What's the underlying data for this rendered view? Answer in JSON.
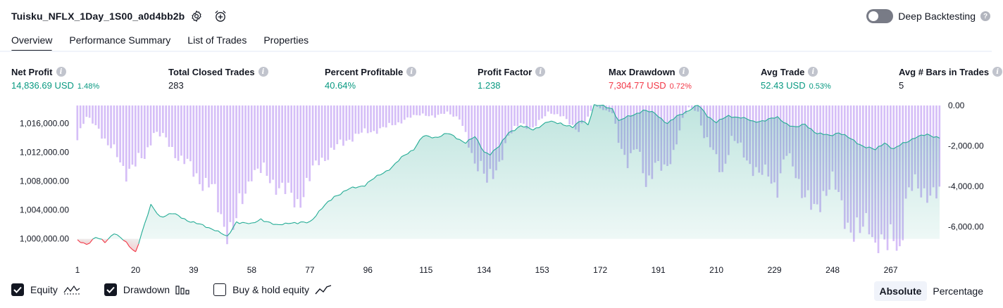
{
  "header": {
    "title": "Tuisku_NFLX_1Day_1S00_a0d4bb2b",
    "settings_icon": "gear-icon",
    "alert_icon": "alarm-clock-plus-icon",
    "deep_backtesting_label": "Deep Backtesting",
    "deep_backtesting_enabled": false
  },
  "tabs": [
    {
      "label": "Overview",
      "active": true
    },
    {
      "label": "Performance Summary",
      "active": false
    },
    {
      "label": "List of Trades",
      "active": false
    },
    {
      "label": "Properties",
      "active": false
    }
  ],
  "metrics": [
    {
      "label": "Net Profit",
      "value": "14,836.69 USD",
      "pct": "1.48%",
      "color": "#089981"
    },
    {
      "label": "Total Closed Trades",
      "value": "283",
      "pct": "",
      "color": "#131722"
    },
    {
      "label": "Percent Profitable",
      "value": "40.64%",
      "pct": "",
      "color": "#089981"
    },
    {
      "label": "Profit Factor",
      "value": "1.238",
      "pct": "",
      "color": "#089981"
    },
    {
      "label": "Max Drawdown",
      "value": "7,304.77 USD",
      "pct": "0.72%",
      "color": "#f23645"
    },
    {
      "label": "Avg Trade",
      "value": "52.43 USD",
      "pct": "0.53%",
      "color": "#089981"
    },
    {
      "label": "Avg # Bars in Trades",
      "value": "5",
      "pct": "",
      "color": "#131722"
    }
  ],
  "chart_data": {
    "type": "area",
    "x_ticks": [
      "1",
      "20",
      "39",
      "58",
      "77",
      "96",
      "115",
      "134",
      "153",
      "172",
      "191",
      "210",
      "229",
      "248",
      "267"
    ],
    "x_range": [
      1,
      283
    ],
    "left_axis": {
      "ticks": [
        "1,016,000.00",
        "1,012,000.00",
        "1,008,000.00",
        "1,004,000.00",
        "1,000,000.00"
      ],
      "range": [
        998500,
        1018500
      ]
    },
    "right_axis": {
      "ticks": [
        "0.00",
        "-2,000.00",
        "-4,000.00",
        "-6,000.00"
      ],
      "range": [
        -7304.77,
        0
      ]
    },
    "equity_baseline": 1000000,
    "equity_series": {
      "name": "Equity",
      "anchors": [
        [
          1,
          999700
        ],
        [
          4,
          999300
        ],
        [
          7,
          1000200
        ],
        [
          10,
          999500
        ],
        [
          13,
          1000900
        ],
        [
          16,
          999800
        ],
        [
          18,
          998900
        ],
        [
          20,
          998200
        ],
        [
          22,
          1000800
        ],
        [
          25,
          1004600
        ],
        [
          28,
          1003100
        ],
        [
          32,
          1003500
        ],
        [
          37,
          1002600
        ],
        [
          42,
          1001800
        ],
        [
          46,
          1001300
        ],
        [
          50,
          1000200
        ],
        [
          53,
          1002400
        ],
        [
          58,
          1002000
        ],
        [
          61,
          1002800
        ],
        [
          66,
          1001800
        ],
        [
          70,
          1002300
        ],
        [
          73,
          1002100
        ],
        [
          77,
          1002400
        ],
        [
          81,
          1004200
        ],
        [
          85,
          1005900
        ],
        [
          90,
          1006900
        ],
        [
          95,
          1007500
        ],
        [
          100,
          1008900
        ],
        [
          104,
          1010000
        ],
        [
          108,
          1011600
        ],
        [
          111,
          1012500
        ],
        [
          114,
          1014200
        ],
        [
          118,
          1014100
        ],
        [
          122,
          1014600
        ],
        [
          126,
          1013800
        ],
        [
          128,
          1013400
        ],
        [
          131,
          1014100
        ],
        [
          134,
          1012100
        ],
        [
          136,
          1011800
        ],
        [
          139,
          1012800
        ],
        [
          142,
          1014800
        ],
        [
          146,
          1015600
        ],
        [
          150,
          1015200
        ],
        [
          155,
          1016200
        ],
        [
          159,
          1016100
        ],
        [
          163,
          1015400
        ],
        [
          166,
          1016500
        ],
        [
          168,
          1015900
        ],
        [
          170,
          1018500
        ],
        [
          173,
          1018400
        ],
        [
          176,
          1018100
        ],
        [
          178,
          1016300
        ],
        [
          182,
          1017100
        ],
        [
          186,
          1017800
        ],
        [
          190,
          1017400
        ],
        [
          194,
          1016000
        ],
        [
          198,
          1017200
        ],
        [
          201,
          1017900
        ],
        [
          204,
          1018500
        ],
        [
          207,
          1017100
        ],
        [
          210,
          1016200
        ],
        [
          214,
          1017000
        ],
        [
          218,
          1016900
        ],
        [
          222,
          1016200
        ],
        [
          226,
          1016500
        ],
        [
          230,
          1016800
        ],
        [
          233,
          1016000
        ],
        [
          236,
          1015400
        ],
        [
          239,
          1015900
        ],
        [
          243,
          1014600
        ],
        [
          247,
          1014300
        ],
        [
          250,
          1014800
        ],
        [
          254,
          1013800
        ],
        [
          258,
          1012900
        ],
        [
          262,
          1012300
        ],
        [
          265,
          1013400
        ],
        [
          268,
          1012400
        ],
        [
          271,
          1013200
        ],
        [
          275,
          1014100
        ],
        [
          279,
          1014400
        ],
        [
          283,
          1014100
        ]
      ]
    },
    "drawdown_series": {
      "name": "Drawdown",
      "anchors": [
        [
          1,
          -1500
        ],
        [
          4,
          -600
        ],
        [
          8,
          -1100
        ],
        [
          11,
          -2000
        ],
        [
          14,
          -2500
        ],
        [
          17,
          -3200
        ],
        [
          20,
          -3000
        ],
        [
          23,
          -2500
        ],
        [
          26,
          -1300
        ],
        [
          30,
          -1700
        ],
        [
          35,
          -2700
        ],
        [
          40,
          -3400
        ],
        [
          45,
          -4200
        ],
        [
          49,
          -5700
        ],
        [
          52,
          -6300
        ],
        [
          55,
          -4700
        ],
        [
          58,
          -3200
        ],
        [
          62,
          -3400
        ],
        [
          66,
          -3800
        ],
        [
          70,
          -4500
        ],
        [
          73,
          -4700
        ],
        [
          77,
          -3700
        ],
        [
          80,
          -2700
        ],
        [
          85,
          -2200
        ],
        [
          90,
          -1600
        ],
        [
          96,
          -1300
        ],
        [
          102,
          -1100
        ],
        [
          108,
          -700
        ],
        [
          114,
          -400
        ],
        [
          118,
          -600
        ],
        [
          122,
          -300
        ],
        [
          126,
          -700
        ],
        [
          129,
          -1900
        ],
        [
          131,
          -2700
        ],
        [
          133,
          -3000
        ],
        [
          135,
          -4000
        ],
        [
          137,
          -3400
        ],
        [
          139,
          -2700
        ],
        [
          142,
          -1600
        ],
        [
          146,
          -800
        ],
        [
          150,
          -1200
        ],
        [
          155,
          -300
        ],
        [
          160,
          -600
        ],
        [
          165,
          -1200
        ],
        [
          168,
          -600
        ],
        [
          170,
          0
        ],
        [
          173,
          -200
        ],
        [
          176,
          -400
        ],
        [
          178,
          -1700
        ],
        [
          181,
          -2700
        ],
        [
          184,
          -2200
        ],
        [
          187,
          -3700
        ],
        [
          190,
          -2900
        ],
        [
          193,
          -3400
        ],
        [
          196,
          -2200
        ],
        [
          199,
          -700
        ],
        [
          201,
          -100
        ],
        [
          204,
          -300
        ],
        [
          206,
          -1500
        ],
        [
          209,
          -2400
        ],
        [
          212,
          -3200
        ],
        [
          215,
          -1700
        ],
        [
          218,
          -2100
        ],
        [
          221,
          -2800
        ],
        [
          224,
          -3600
        ],
        [
          227,
          -3300
        ],
        [
          230,
          -4000
        ],
        [
          233,
          -2500
        ],
        [
          236,
          -3200
        ],
        [
          239,
          -4500
        ],
        [
          242,
          -5500
        ],
        [
          245,
          -4200
        ],
        [
          248,
          -3800
        ],
        [
          251,
          -5100
        ],
        [
          254,
          -5900
        ],
        [
          257,
          -6600
        ],
        [
          260,
          -5700
        ],
        [
          263,
          -7000
        ],
        [
          266,
          -7300
        ],
        [
          268,
          -6200
        ],
        [
          270,
          -6900
        ],
        [
          272,
          -4900
        ],
        [
          275,
          -3900
        ],
        [
          278,
          -4100
        ],
        [
          281,
          -4700
        ],
        [
          283,
          -4500
        ]
      ]
    },
    "colors": {
      "equity_line": "#22ab94",
      "equity_negative_line": "#f23645",
      "equity_fill": "#089981",
      "equity_negative_fill": "#f23645",
      "drawdown_bar": "#b388f0"
    }
  },
  "legend": [
    {
      "label": "Equity",
      "checked": true,
      "icon": "area-line-icon"
    },
    {
      "label": "Drawdown",
      "checked": true,
      "icon": "bars-icon"
    },
    {
      "label": "Buy & hold equity",
      "checked": false,
      "icon": "line-trend-icon"
    }
  ],
  "modes": [
    {
      "label": "Absolute",
      "active": true
    },
    {
      "label": "Percentage",
      "active": false
    }
  ]
}
